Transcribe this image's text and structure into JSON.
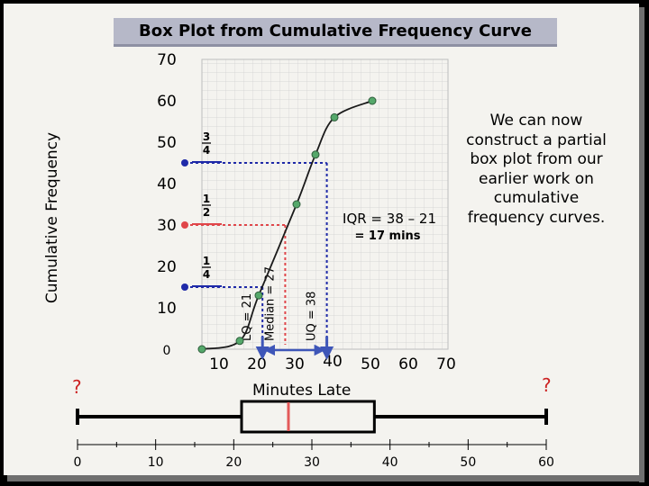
{
  "title": "Box Plot from Cumulative Frequency Curve",
  "colors": {
    "curve": "#1a1a1a",
    "point": "#55a86a",
    "q1": "#1f2aa8",
    "median": "#e0464a",
    "q3": "#1f2aa8",
    "arrow": "#3e56b8",
    "box": "#000000",
    "median_line": "#e35a5a",
    "title_bar": "#b6b8c8",
    "qmark": "#cc2222"
  },
  "note": "We can now construct a partial box plot from our earlier work on cumulative frequency curves.",
  "iqr": {
    "line1": "IQR  = 38 – 21",
    "line2": "= 17 mins"
  },
  "fractions": {
    "q1": {
      "num": "1",
      "den": "4"
    },
    "median": {
      "num": "1",
      "den": "2"
    },
    "q3": {
      "num": "3",
      "den": "4"
    }
  },
  "vertical_labels": {
    "q1": "LQ = 21",
    "median": "Median = 27",
    "q3": "UQ = 38"
  },
  "question_marks": [
    "?",
    "?"
  ],
  "chart_data": [
    {
      "type": "line",
      "title": "",
      "xlabel": "Minutes Late",
      "ylabel": "Cumulative Frequency",
      "x_ticks": [
        10,
        20,
        30,
        40,
        50,
        60,
        70
      ],
      "y_ticks": [
        0,
        10,
        20,
        30,
        40,
        50,
        60,
        70
      ],
      "xlim": [
        5,
        70
      ],
      "ylim": [
        0,
        70
      ],
      "grid": true,
      "points": [
        [
          5,
          0
        ],
        [
          15,
          2
        ],
        [
          20,
          13
        ],
        [
          30,
          35
        ],
        [
          35,
          47
        ],
        [
          40,
          56
        ],
        [
          50,
          60
        ]
      ],
      "quartiles": [
        {
          "name": "LQ",
          "cf": 15,
          "x": 21
        },
        {
          "name": "Median",
          "cf": 30,
          "x": 27
        },
        {
          "name": "UQ",
          "cf": 45,
          "x": 38
        }
      ]
    },
    {
      "type": "box",
      "axis_ticks": [
        0,
        10,
        20,
        30,
        40,
        50,
        60
      ],
      "min": 0,
      "q1": 21,
      "median": 27,
      "q3": 38,
      "max": 60
    }
  ]
}
